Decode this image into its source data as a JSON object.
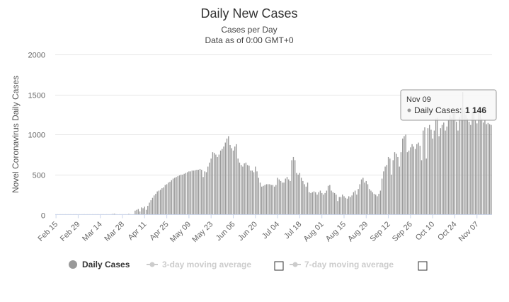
{
  "chart_data": {
    "type": "bar",
    "title": "Daily New Cases",
    "subtitle": "Cases per Day",
    "subtitle2": "Data as of 0:00 GMT+0",
    "xlabel": "",
    "ylabel": "Novel Coronavirus Daily Cases",
    "ylim": [
      0,
      2000
    ],
    "yticks": [
      0,
      500,
      1000,
      1500,
      2000
    ],
    "ytick_labels": [
      "0",
      "500",
      "1000",
      "1500",
      "2000"
    ],
    "xtick_labels": [
      "Feb 15",
      "Feb 29",
      "Mar 14",
      "Mar 28",
      "Apr 11",
      "Apr 25",
      "May 09",
      "May 23",
      "Jun 06",
      "Jun 20",
      "Jul 04",
      "Jul 18",
      "Aug 01",
      "Aug 15",
      "Aug 29",
      "Sep 12",
      "Sep 26",
      "Oct 10",
      "Oct 24",
      "Nov 07"
    ],
    "grid": true,
    "series": [
      {
        "name": "Daily Cases",
        "color": "#999999",
        "values": [
          0,
          0,
          0,
          0,
          0,
          0,
          0,
          0,
          0,
          0,
          0,
          0,
          0,
          0,
          0,
          0,
          0,
          0,
          0,
          0,
          0,
          0,
          0,
          0,
          0,
          0,
          0,
          0,
          0,
          0,
          0,
          0,
          0,
          0,
          0,
          0,
          10,
          12,
          0,
          0,
          0,
          0,
          0,
          0,
          0,
          0,
          10,
          0,
          0,
          0,
          50,
          60,
          70,
          40,
          90,
          80,
          100,
          60,
          110,
          150,
          180,
          210,
          240,
          260,
          290,
          300,
          310,
          330,
          340,
          370,
          380,
          400,
          410,
          430,
          450,
          460,
          470,
          480,
          490,
          500,
          500,
          510,
          520,
          530,
          540,
          540,
          550,
          550,
          555,
          560,
          560,
          570,
          560,
          470,
          540,
          530,
          600,
          650,
          700,
          780,
          770,
          750,
          720,
          750,
          800,
          820,
          850,
          900,
          950,
          980,
          870,
          830,
          800,
          850,
          880,
          700,
          650,
          620,
          600,
          640,
          650,
          620,
          610,
          550,
          550,
          530,
          600,
          540,
          460,
          400,
          350,
          360,
          370,
          380,
          380,
          380,
          370,
          370,
          350,
          370,
          460,
          440,
          420,
          400,
          400,
          450,
          470,
          440,
          420,
          680,
          720,
          680,
          520,
          500,
          520,
          460,
          420,
          380,
          350,
          400,
          280,
          270,
          280,
          290,
          280,
          250,
          280,
          300,
          270,
          250,
          270,
          300,
          360,
          370,
          300,
          280,
          270,
          250,
          170,
          220,
          220,
          250,
          230,
          210,
          200,
          230,
          220,
          240,
          280,
          300,
          250,
          320,
          380,
          440,
          460,
          400,
          420,
          380,
          320,
          300,
          280,
          260,
          250,
          230,
          260,
          300,
          450,
          540,
          600,
          620,
          720,
          700,
          500,
          680,
          780,
          760,
          720,
          600,
          780,
          950,
          980,
          1000,
          780,
          800,
          840,
          880,
          850,
          820,
          880,
          900,
          860,
          680,
          1050,
          1090,
          700,
          1080,
          1120,
          1060,
          950,
          1050,
          1200,
          1210,
          980,
          1080,
          1120,
          1150,
          1050,
          1100,
          1180,
          1240,
          1210,
          1260,
          1300,
          1160,
          1050,
          1220,
          1340,
          1530,
          1300,
          1250,
          1200,
          1160,
          1120,
          1280,
          1300,
          1180,
          1140,
          1300,
          1260,
          1200,
          1150,
          1180,
          1130,
          1146,
          1130,
          1120
        ]
      },
      {
        "name": "3-day moving average",
        "visible": false
      },
      {
        "name": "7-day moving average",
        "visible": false
      }
    ]
  },
  "tooltip": {
    "date": "Nov 09",
    "series_label": "Daily Cases:",
    "value_text": "1 146"
  }
}
